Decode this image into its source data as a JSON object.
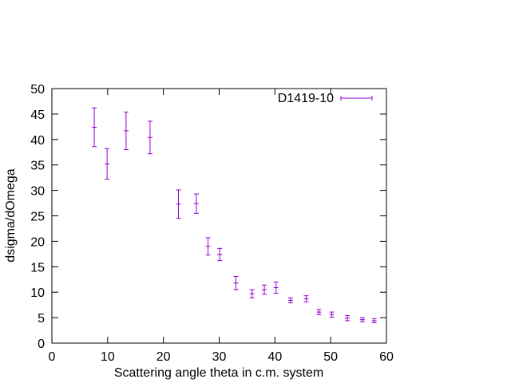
{
  "chart_data": {
    "type": "scatter",
    "title": "",
    "xlabel": "Scattering angle theta in c.m. system",
    "ylabel": "dsigma/dOmega",
    "xlim": [
      0,
      60
    ],
    "ylim": [
      0,
      50
    ],
    "xticks": [
      0,
      10,
      20,
      30,
      40,
      50,
      60
    ],
    "yticks": [
      0,
      5,
      10,
      15,
      20,
      25,
      30,
      35,
      40,
      45,
      50
    ],
    "grid": false,
    "legend_position": "top-right",
    "series": [
      {
        "name": "D1419-10",
        "color": "#9400d3",
        "style": "errorbars",
        "points": [
          {
            "x": 7.6,
            "y": 42.4,
            "err": 3.8
          },
          {
            "x": 9.9,
            "y": 35.2,
            "err": 3.0
          },
          {
            "x": 13.3,
            "y": 41.7,
            "err": 3.7
          },
          {
            "x": 17.6,
            "y": 40.4,
            "err": 3.2
          },
          {
            "x": 22.7,
            "y": 27.3,
            "err": 2.8
          },
          {
            "x": 25.9,
            "y": 27.4,
            "err": 1.9
          },
          {
            "x": 28.0,
            "y": 19.0,
            "err": 1.7
          },
          {
            "x": 30.1,
            "y": 17.4,
            "err": 1.2
          },
          {
            "x": 33.0,
            "y": 11.8,
            "err": 1.3
          },
          {
            "x": 35.9,
            "y": 9.7,
            "err": 0.8
          },
          {
            "x": 38.1,
            "y": 10.5,
            "err": 0.9
          },
          {
            "x": 40.2,
            "y": 10.9,
            "err": 1.1
          },
          {
            "x": 42.8,
            "y": 8.4,
            "err": 0.5
          },
          {
            "x": 45.6,
            "y": 8.7,
            "err": 0.6
          },
          {
            "x": 47.9,
            "y": 6.1,
            "err": 0.5
          },
          {
            "x": 50.2,
            "y": 5.6,
            "err": 0.5
          },
          {
            "x": 53.0,
            "y": 4.9,
            "err": 0.5
          },
          {
            "x": 55.7,
            "y": 4.6,
            "err": 0.4
          },
          {
            "x": 57.8,
            "y": 4.4,
            "err": 0.4
          }
        ]
      }
    ]
  }
}
